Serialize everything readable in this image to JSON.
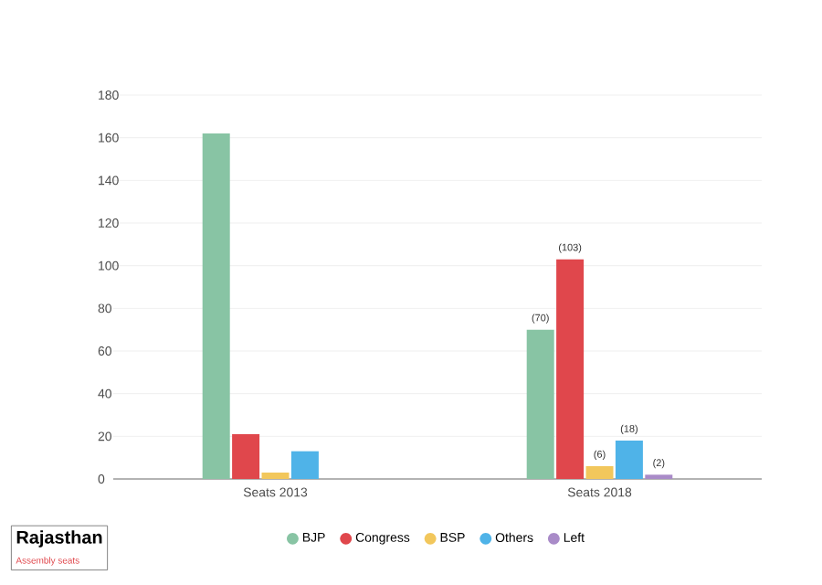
{
  "chart_data": {
    "type": "bar",
    "categories": [
      "Seats 2013",
      "Seats 2018"
    ],
    "series": [
      {
        "name": "BJP",
        "color": "#88c4a4",
        "values": [
          162,
          70
        ],
        "value_labels": [
          null,
          "(70)"
        ]
      },
      {
        "name": "Congress",
        "color": "#e0474c",
        "values": [
          21,
          103
        ],
        "value_labels": [
          null,
          "(103)"
        ]
      },
      {
        "name": "BSP",
        "color": "#f2c75c",
        "values": [
          3,
          6
        ],
        "value_labels": [
          null,
          "(6)"
        ]
      },
      {
        "name": "Others",
        "color": "#4fb3e8",
        "values": [
          13,
          18
        ],
        "value_labels": [
          null,
          "(18)"
        ]
      },
      {
        "name": "Left",
        "color": "#a98bc8",
        "values": [
          null,
          2
        ],
        "value_labels": [
          null,
          "(2)"
        ]
      }
    ],
    "ylim": [
      0,
      180
    ],
    "yticks": [
      0,
      20,
      40,
      60,
      80,
      100,
      120,
      140,
      160,
      180
    ],
    "grid": "y",
    "legend": "bottom",
    "annotations": [
      "Rajasthan",
      "Assembly seats"
    ]
  }
}
